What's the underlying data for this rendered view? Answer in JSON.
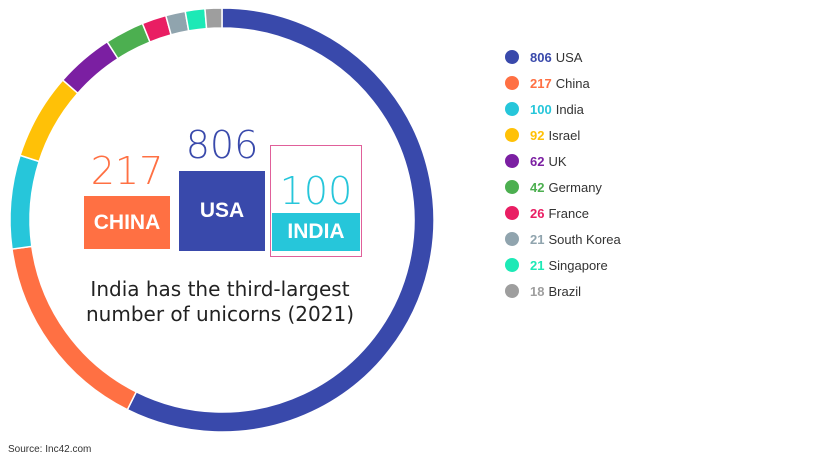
{
  "chart_data": {
    "type": "pie",
    "subtype": "donut",
    "title": "India has the third-largest number of unicorns (2021)",
    "categories": [
      "USA",
      "China",
      "India",
      "Israel",
      "UK",
      "Germany",
      "France",
      "South Korea",
      "Singapore",
      "Brazil"
    ],
    "values": [
      806,
      217,
      100,
      92,
      62,
      42,
      26,
      21,
      21,
      18
    ],
    "colors": [
      "#3949ab",
      "#ff7043",
      "#26c6da",
      "#ffc107",
      "#7b1fa2",
      "#4caf50",
      "#e91e63",
      "#90a4ae",
      "#1de9b6",
      "#9e9e9e"
    ],
    "legend": "right"
  },
  "highlights": {
    "china": {
      "value": "217",
      "label": "CHINA"
    },
    "usa": {
      "value": "806",
      "label": "USA"
    },
    "india": {
      "value": "100",
      "label": "INDIA"
    }
  },
  "headline": {
    "line1": "India has the third-largest",
    "line2": "number of unicorns (2021)"
  },
  "source": "Source: Inc42.com"
}
